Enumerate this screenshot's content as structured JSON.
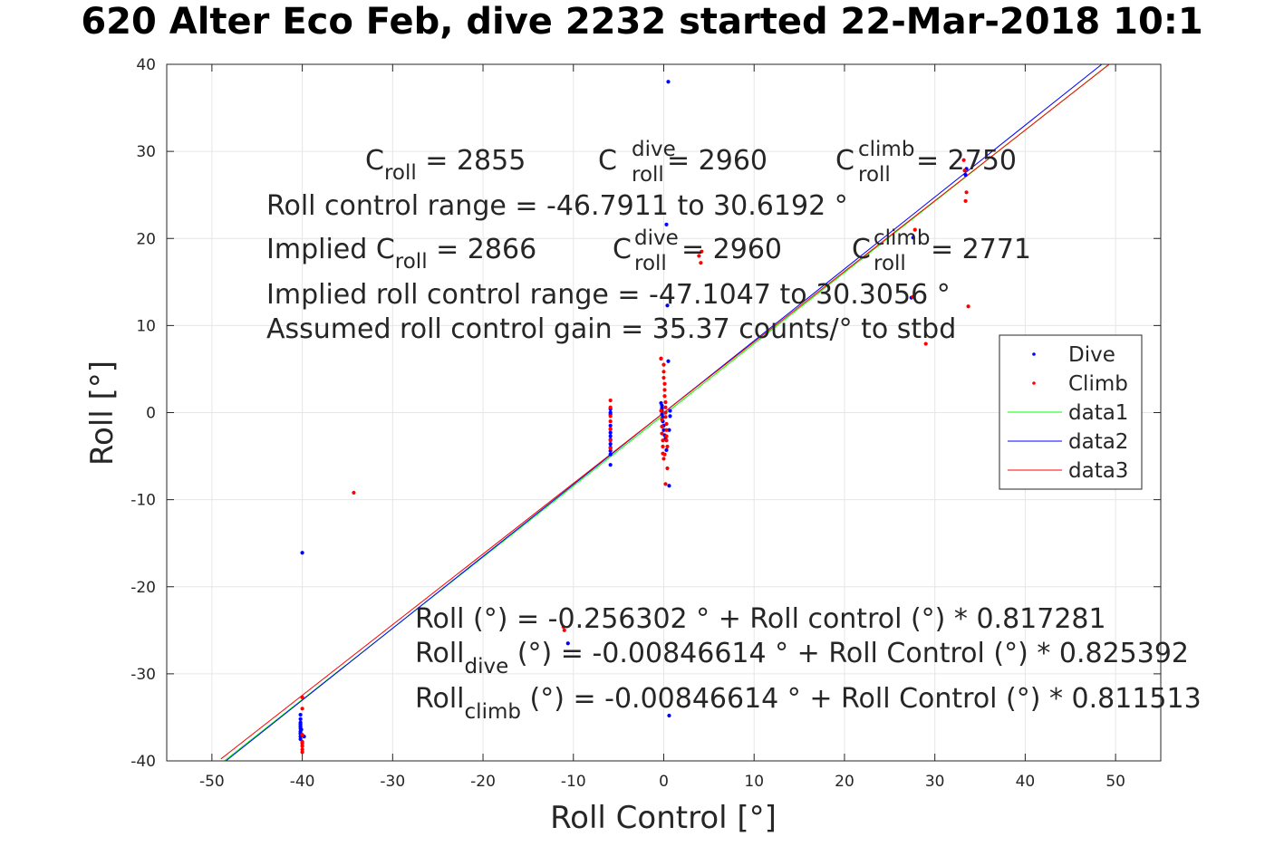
{
  "title": "620 Alter Eco Feb, dive 2232 started 22-Mar-2018 10:1",
  "chart_data": {
    "type": "scatter",
    "title": "620 Alter Eco Feb, dive 2232 started 22-Mar-2018 10:1",
    "xlabel": "Roll Control [°]",
    "ylabel": "Roll [°]",
    "xlim": [
      -55,
      55
    ],
    "ylim": [
      -40,
      40
    ],
    "xticks": [
      -50,
      -40,
      -30,
      -20,
      -10,
      0,
      10,
      20,
      30,
      40,
      50
    ],
    "yticks": [
      -40,
      -30,
      -20,
      -10,
      0,
      10,
      20,
      30,
      40
    ],
    "grid": true,
    "legend_position": "right",
    "series": [
      {
        "name": "Dive",
        "kind": "points",
        "color": "#0000ff",
        "x": [
          -40.2,
          -40.2,
          -40.2,
          -40.2,
          -40.2,
          -40.2,
          -40.2,
          -40.2,
          -40.2,
          -40.2,
          -40.2,
          -40.2,
          -40.1,
          -40.1,
          -40.0,
          -39.8,
          -5.9,
          -5.9,
          -5.9,
          -5.9,
          -5.9,
          -5.9,
          -5.9,
          -5.9,
          -5.9,
          -5.9,
          -5.9,
          -5.9,
          -5.9,
          -0.3,
          -0.3,
          -0.2,
          -0.2,
          -0.2,
          -0.2,
          -0.1,
          -0.1,
          0.0,
          0.0,
          0.1,
          0.2,
          0.3,
          0.3,
          0.4,
          0.5,
          0.5,
          0.6,
          0.6,
          0.6,
          0.7,
          0.7,
          27.4,
          27.6,
          33.4,
          33.5,
          -10.6
        ],
        "y": [
          -34.7,
          -35.2,
          -35.6,
          -36.0,
          -36.3,
          -36.6,
          -36.9,
          -37.2,
          -37.5,
          -35.8,
          -36.1,
          -36.8,
          -37.0,
          -36.4,
          -16.1,
          -37.2,
          0.4,
          -0.2,
          -1.5,
          -1.9,
          -2.3,
          -2.7,
          -3.1,
          -3.6,
          -4.0,
          -4.4,
          -4.8,
          -6.0,
          0.0,
          6.2,
          1.1,
          0.8,
          0.5,
          0.2,
          -0.2,
          -0.5,
          -1.0,
          -1.5,
          -2.0,
          -2.6,
          -3.0,
          -4.3,
          21.6,
          12.3,
          38.0,
          5.9,
          -8.4,
          -34.8,
          -2.0,
          -0.4,
          0.2,
          13.2,
          20.1,
          27.3,
          28.0,
          -26.5
        ]
      },
      {
        "name": "Climb",
        "kind": "points",
        "color": "#ff0000",
        "x": [
          -40.0,
          -40.0,
          -40.0,
          -40.0,
          -40.0,
          -40.0,
          -40.0,
          -40.0,
          -34.3,
          -11.1,
          -11.0,
          -5.9,
          -5.9,
          -5.9,
          -5.9,
          -5.9,
          -5.9,
          -5.9,
          -0.3,
          -0.3,
          -0.2,
          -0.2,
          -0.2,
          -0.1,
          -0.1,
          -0.1,
          0.0,
          0.0,
          0.0,
          0.0,
          0.1,
          0.1,
          0.1,
          0.2,
          0.2,
          0.2,
          0.2,
          0.3,
          0.3,
          0.3,
          0.3,
          0.4,
          0.4,
          0.2,
          0.1,
          3.9,
          4.1,
          4.2,
          27.6,
          27.8,
          29.0,
          33.2,
          33.3,
          33.4,
          33.5,
          33.7
        ],
        "y": [
          -32.7,
          -34.0,
          -37.0,
          -37.8,
          -38.3,
          -38.7,
          -38.0,
          -39.0,
          -9.2,
          -24.6,
          -25.0,
          1.4,
          0.6,
          -0.4,
          -1.0,
          -1.9,
          -3.2,
          -4.1,
          6.2,
          0.2,
          -0.8,
          -1.6,
          -2.4,
          -3.2,
          -3.9,
          -4.7,
          -5.3,
          5.5,
          4.7,
          4.0,
          3.3,
          2.6,
          1.9,
          1.2,
          0.6,
          0.0,
          -0.5,
          -1.3,
          -2.0,
          -2.7,
          -3.2,
          -3.9,
          -6.4,
          -8.2,
          -4.8,
          18.0,
          17.2,
          18.5,
          13.3,
          21.0,
          7.9,
          29.0,
          27.8,
          24.3,
          25.3,
          12.2
        ]
      },
      {
        "name": "data1",
        "kind": "line",
        "color": "#00ff00",
        "intercept": -0.256302,
        "slope": 0.817281
      },
      {
        "name": "data2",
        "kind": "line",
        "color": "#0000ff",
        "intercept": -0.00846614,
        "slope": 0.825392
      },
      {
        "name": "data3",
        "kind": "line",
        "color": "#ff0000",
        "intercept": -0.00846614,
        "slope": 0.811513
      }
    ],
    "annotations": {
      "c_roll_main": "C",
      "c_roll_main_sub": "roll",
      "c_roll_main_val": " = 2855",
      "c_roll_dive": "C",
      "c_roll_dive_sup": "dive",
      "c_roll_dive_sub": "roll",
      "c_roll_dive_val": " = 2960",
      "c_roll_climb": "C",
      "c_roll_climb_sup": "climb",
      "c_roll_climb_sub": "roll",
      "c_roll_climb_val": " = 2750",
      "range_line": "Roll control range = -46.7911 to 30.6192 °",
      "implied_c_roll": "Implied C",
      "implied_c_roll_sub": "roll",
      "implied_c_roll_val": " = 2866",
      "implied_dive": "C",
      "implied_dive_sup": "dive",
      "implied_dive_sub": "roll",
      "implied_dive_val": " = 2960",
      "implied_climb": "C",
      "implied_climb_sup": "climb",
      "implied_climb_sub": "roll",
      "implied_climb_val": " = 2771",
      "implied_range_line": "Implied roll control range = -47.1047 to 30.3056 °",
      "gain_line": "Assumed roll control gain = 35.37 counts/° to stbd",
      "fit_line": "Roll (°) = -0.256302 ° + Roll control (°) * 0.817281",
      "fit_dive": "Roll",
      "fit_dive_sub": "dive",
      "fit_dive_rest": " (°) = -0.00846614 ° + Roll Control (°) * 0.825392",
      "fit_climb": "Roll",
      "fit_climb_sub": "climb",
      "fit_climb_rest": " (°) = -0.00846614 ° + Roll Control (°) * 0.811513"
    }
  }
}
